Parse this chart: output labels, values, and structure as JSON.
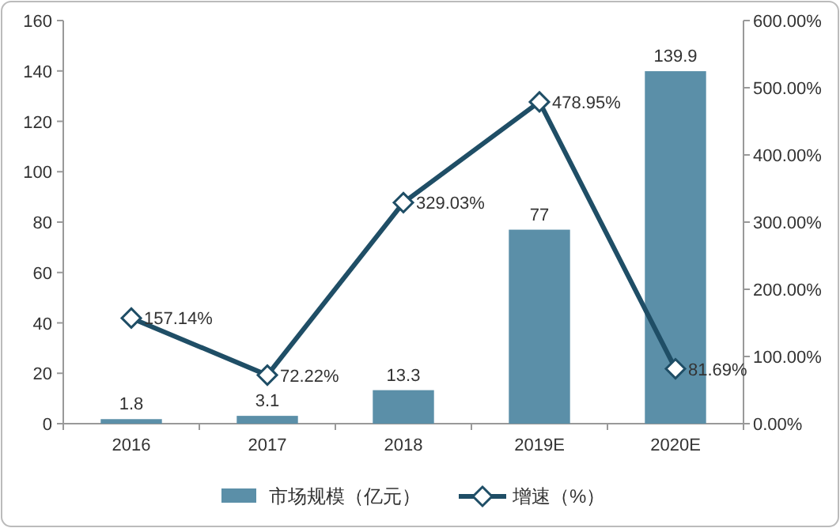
{
  "chart_data": {
    "type": "bar",
    "categories": [
      "2016",
      "2017",
      "2018",
      "2019E",
      "2020E"
    ],
    "series": [
      {
        "name": "市场规模（亿元）",
        "color": "#5b8fa8",
        "values": [
          1.8,
          3.1,
          13.3,
          77,
          139.9
        ],
        "value_labels": [
          "1.8",
          "3.1",
          "13.3",
          "77",
          "139.9"
        ]
      },
      {
        "name": "增速（%）",
        "type": "line",
        "axis": "y2",
        "color": "#1f4e66",
        "marker": "diamond",
        "values": [
          157.14,
          72.22,
          329.03,
          478.95,
          81.69
        ],
        "value_labels": [
          "157.14%",
          "72.22%",
          "329.03%",
          "478.95%",
          "81.69%"
        ]
      }
    ],
    "ylim": [
      0,
      160
    ],
    "yticks": [
      0,
      20,
      40,
      60,
      80,
      100,
      120,
      140,
      160
    ],
    "y2lim": [
      0,
      600
    ],
    "y2ticks": [
      {
        "value": 0,
        "label": "0.00%"
      },
      {
        "value": 100,
        "label": "100.00%"
      },
      {
        "value": 200,
        "label": "200.00%"
      },
      {
        "value": 300,
        "label": "300.00%"
      },
      {
        "value": 400,
        "label": "400.00%"
      },
      {
        "value": 500,
        "label": "500.00%"
      },
      {
        "value": 600,
        "label": "600.00%"
      }
    ],
    "legend": "bottom",
    "grid": false
  }
}
